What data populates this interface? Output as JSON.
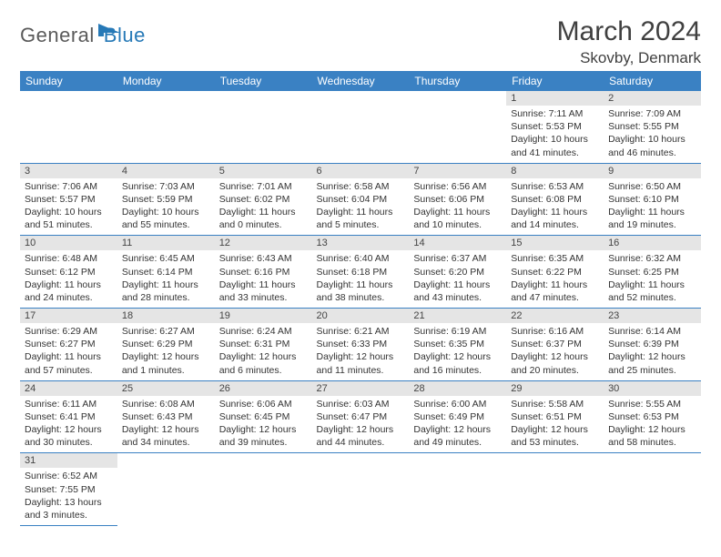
{
  "brand": {
    "part1": "General",
    "part2": "Blue"
  },
  "title": "March 2024",
  "location": "Skovby, Denmark",
  "colors": {
    "header_bg": "#3a81c3",
    "header_text": "#ffffff",
    "daynum_bg": "#e5e5e5",
    "border": "#3a81c3",
    "logo_gray": "#5a5a5a",
    "logo_blue": "#2679b7"
  },
  "weekdays": [
    "Sunday",
    "Monday",
    "Tuesday",
    "Wednesday",
    "Thursday",
    "Friday",
    "Saturday"
  ],
  "first_weekday_index": 5,
  "days": [
    {
      "n": 1,
      "sunrise": "7:11 AM",
      "sunset": "5:53 PM",
      "dl_h": 10,
      "dl_m": 41
    },
    {
      "n": 2,
      "sunrise": "7:09 AM",
      "sunset": "5:55 PM",
      "dl_h": 10,
      "dl_m": 46
    },
    {
      "n": 3,
      "sunrise": "7:06 AM",
      "sunset": "5:57 PM",
      "dl_h": 10,
      "dl_m": 51
    },
    {
      "n": 4,
      "sunrise": "7:03 AM",
      "sunset": "5:59 PM",
      "dl_h": 10,
      "dl_m": 55
    },
    {
      "n": 5,
      "sunrise": "7:01 AM",
      "sunset": "6:02 PM",
      "dl_h": 11,
      "dl_m": 0
    },
    {
      "n": 6,
      "sunrise": "6:58 AM",
      "sunset": "6:04 PM",
      "dl_h": 11,
      "dl_m": 5
    },
    {
      "n": 7,
      "sunrise": "6:56 AM",
      "sunset": "6:06 PM",
      "dl_h": 11,
      "dl_m": 10
    },
    {
      "n": 8,
      "sunrise": "6:53 AM",
      "sunset": "6:08 PM",
      "dl_h": 11,
      "dl_m": 14
    },
    {
      "n": 9,
      "sunrise": "6:50 AM",
      "sunset": "6:10 PM",
      "dl_h": 11,
      "dl_m": 19
    },
    {
      "n": 10,
      "sunrise": "6:48 AM",
      "sunset": "6:12 PM",
      "dl_h": 11,
      "dl_m": 24
    },
    {
      "n": 11,
      "sunrise": "6:45 AM",
      "sunset": "6:14 PM",
      "dl_h": 11,
      "dl_m": 28
    },
    {
      "n": 12,
      "sunrise": "6:43 AM",
      "sunset": "6:16 PM",
      "dl_h": 11,
      "dl_m": 33
    },
    {
      "n": 13,
      "sunrise": "6:40 AM",
      "sunset": "6:18 PM",
      "dl_h": 11,
      "dl_m": 38
    },
    {
      "n": 14,
      "sunrise": "6:37 AM",
      "sunset": "6:20 PM",
      "dl_h": 11,
      "dl_m": 43
    },
    {
      "n": 15,
      "sunrise": "6:35 AM",
      "sunset": "6:22 PM",
      "dl_h": 11,
      "dl_m": 47
    },
    {
      "n": 16,
      "sunrise": "6:32 AM",
      "sunset": "6:25 PM",
      "dl_h": 11,
      "dl_m": 52
    },
    {
      "n": 17,
      "sunrise": "6:29 AM",
      "sunset": "6:27 PM",
      "dl_h": 11,
      "dl_m": 57
    },
    {
      "n": 18,
      "sunrise": "6:27 AM",
      "sunset": "6:29 PM",
      "dl_h": 12,
      "dl_m": 1
    },
    {
      "n": 19,
      "sunrise": "6:24 AM",
      "sunset": "6:31 PM",
      "dl_h": 12,
      "dl_m": 6
    },
    {
      "n": 20,
      "sunrise": "6:21 AM",
      "sunset": "6:33 PM",
      "dl_h": 12,
      "dl_m": 11
    },
    {
      "n": 21,
      "sunrise": "6:19 AM",
      "sunset": "6:35 PM",
      "dl_h": 12,
      "dl_m": 16
    },
    {
      "n": 22,
      "sunrise": "6:16 AM",
      "sunset": "6:37 PM",
      "dl_h": 12,
      "dl_m": 20
    },
    {
      "n": 23,
      "sunrise": "6:14 AM",
      "sunset": "6:39 PM",
      "dl_h": 12,
      "dl_m": 25
    },
    {
      "n": 24,
      "sunrise": "6:11 AM",
      "sunset": "6:41 PM",
      "dl_h": 12,
      "dl_m": 30
    },
    {
      "n": 25,
      "sunrise": "6:08 AM",
      "sunset": "6:43 PM",
      "dl_h": 12,
      "dl_m": 34
    },
    {
      "n": 26,
      "sunrise": "6:06 AM",
      "sunset": "6:45 PM",
      "dl_h": 12,
      "dl_m": 39
    },
    {
      "n": 27,
      "sunrise": "6:03 AM",
      "sunset": "6:47 PM",
      "dl_h": 12,
      "dl_m": 44
    },
    {
      "n": 28,
      "sunrise": "6:00 AM",
      "sunset": "6:49 PM",
      "dl_h": 12,
      "dl_m": 49
    },
    {
      "n": 29,
      "sunrise": "5:58 AM",
      "sunset": "6:51 PM",
      "dl_h": 12,
      "dl_m": 53
    },
    {
      "n": 30,
      "sunrise": "5:55 AM",
      "sunset": "6:53 PM",
      "dl_h": 12,
      "dl_m": 58
    },
    {
      "n": 31,
      "sunrise": "6:52 AM",
      "sunset": "7:55 PM",
      "dl_h": 13,
      "dl_m": 3
    }
  ],
  "labels": {
    "sunrise": "Sunrise:",
    "sunset": "Sunset:",
    "daylight": "Daylight:",
    "hours": "hours",
    "and": "and",
    "minutes": "minutes."
  }
}
